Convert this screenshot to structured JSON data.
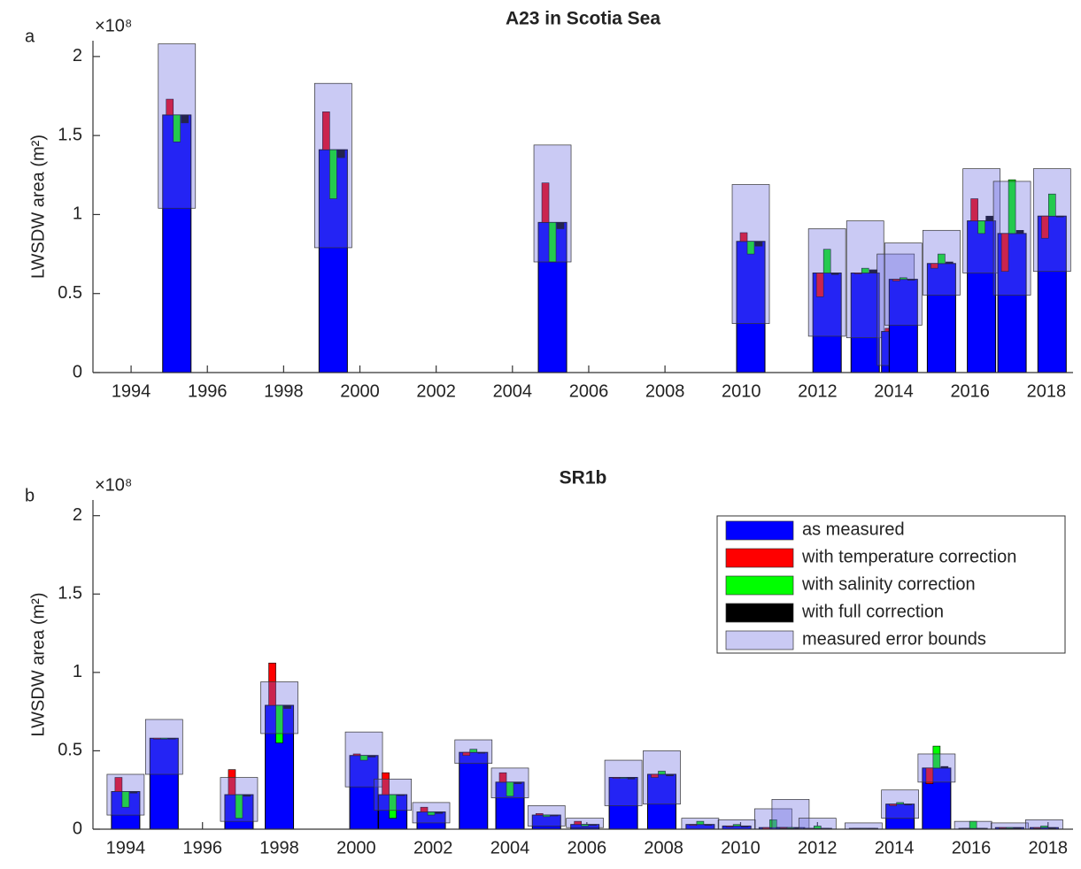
{
  "chart_data": [
    {
      "type": "corrections",
      "panel_label": "a",
      "title": "A23 in Scotia Sea",
      "ylabel": "LWSDW area (m²)",
      "exponent": "×10⁸",
      "x": [
        1995.2,
        1999.3,
        2005.05,
        2010.25,
        2012.25,
        2013.25,
        2014.05,
        2014.25,
        2015.25,
        2016.3,
        2017.1,
        2018.15
      ],
      "series": [
        {
          "name": "as measured",
          "color": "#0000ff",
          "values": [
            1.63,
            1.41,
            0.95,
            0.83,
            0.63,
            0.63,
            0.26,
            0.59,
            0.69,
            0.96,
            0.88,
            0.99
          ]
        },
        {
          "name": "with temperature correction",
          "color": "#ff0000",
          "values": [
            1.73,
            1.65,
            1.2,
            0.885,
            0.48,
            0.63,
            0.28,
            0.58,
            0.66,
            1.1,
            0.64,
            0.85
          ]
        },
        {
          "name": "with salinity correction",
          "color": "#00ff00",
          "values": [
            1.46,
            1.1,
            0.7,
            0.75,
            0.78,
            0.66,
            0.27,
            0.6,
            0.75,
            0.88,
            1.22,
            1.13
          ]
        },
        {
          "name": "with full correction",
          "color": "#000000",
          "values": [
            1.58,
            1.36,
            0.91,
            0.8,
            0.62,
            0.65,
            0.27,
            0.59,
            0.7,
            0.99,
            0.9,
            0.99
          ]
        },
        {
          "name": "measured error bounds",
          "color": "#6666e0",
          "lower": [
            1.04,
            0.79,
            0.7,
            0.31,
            0.23,
            0.22,
            0.045,
            0.3,
            0.49,
            0.63,
            0.49,
            0.64
          ],
          "upper": [
            2.08,
            1.83,
            1.44,
            1.19,
            0.91,
            0.96,
            0.75,
            0.82,
            0.9,
            1.29,
            1.21,
            1.29
          ]
        }
      ],
      "xlim": [
        1993.0,
        2018.7
      ],
      "ylim": [
        0,
        2.1
      ],
      "xticks": [
        1994,
        1996,
        1998,
        2000,
        2002,
        2004,
        2006,
        2008,
        2010,
        2012,
        2014,
        2016,
        2018
      ],
      "yticks": [
        0,
        0.5,
        1,
        1.5,
        2
      ],
      "legend": false
    },
    {
      "type": "corrections",
      "panel_label": "b",
      "title": "SR1b",
      "ylabel": "LWSDW area (m²)",
      "exponent": "×10⁸",
      "x": [
        1994.0,
        1995.0,
        1996.95,
        1998.0,
        2000.2,
        2000.95,
        2001.95,
        2003.05,
        2004.0,
        2004.95,
        2005.95,
        2006.95,
        2007.95,
        2008.95,
        2009.9,
        2010.85,
        2011.3,
        2012.0,
        2013.2,
        2014.15,
        2015.1,
        2016.05,
        2017.0,
        2017.9
      ],
      "series": [
        {
          "name": "as measured",
          "color": "#0000ff",
          "values": [
            0.24,
            0.58,
            0.22,
            0.79,
            0.47,
            0.22,
            0.11,
            0.49,
            0.3,
            0.09,
            0.03,
            0.33,
            0.35,
            0.03,
            0.02,
            0.01,
            0.01,
            0.005,
            0.005,
            0.16,
            0.39,
            0.005,
            0.01,
            0.01
          ]
        },
        {
          "name": "with temperature correction",
          "color": "#ff0000",
          "values": [
            0.33,
            0.58,
            0.38,
            1.06,
            0.48,
            0.36,
            0.14,
            0.47,
            0.36,
            0.1,
            0.05,
            0.33,
            0.33,
            0.03,
            0.02,
            0.0,
            0.01,
            0.0,
            0.005,
            0.15,
            0.29,
            0.0,
            0.01,
            0.01
          ]
        },
        {
          "name": "with salinity correction",
          "color": "#00ff00",
          "values": [
            0.14,
            0.58,
            0.07,
            0.55,
            0.44,
            0.07,
            0.09,
            0.51,
            0.21,
            0.08,
            0.02,
            0.33,
            0.37,
            0.05,
            0.03,
            0.06,
            0.01,
            0.02,
            0.005,
            0.17,
            0.53,
            0.05,
            0.01,
            0.02
          ]
        },
        {
          "name": "with full correction",
          "color": "#000000",
          "values": [
            0.23,
            0.575,
            0.21,
            0.77,
            0.46,
            0.22,
            0.1,
            0.49,
            0.29,
            0.09,
            0.03,
            0.32,
            0.34,
            0.03,
            0.02,
            0.01,
            0.01,
            0.005,
            0.005,
            0.16,
            0.4,
            0.005,
            0.01,
            0.01
          ]
        },
        {
          "name": "measured error bounds",
          "color": "#6666e0",
          "lower": [
            0.09,
            0.35,
            0.05,
            0.61,
            0.27,
            0.12,
            0.04,
            0.42,
            0.2,
            0.02,
            0.01,
            0.15,
            0.16,
            0.0,
            0.0,
            0.0,
            0.0,
            0.0,
            0.0,
            0.07,
            0.3,
            0.0,
            0.0,
            0.0
          ],
          "upper": [
            0.35,
            0.7,
            0.33,
            0.94,
            0.62,
            0.32,
            0.17,
            0.57,
            0.39,
            0.15,
            0.07,
            0.44,
            0.5,
            0.07,
            0.06,
            0.13,
            0.19,
            0.07,
            0.04,
            0.25,
            0.48,
            0.05,
            0.04,
            0.06
          ]
        }
      ],
      "xlim": [
        1993.15,
        2018.65
      ],
      "ylim": [
        0,
        2.1
      ],
      "xticks": [
        1994,
        1996,
        1998,
        2000,
        2002,
        2004,
        2006,
        2008,
        2010,
        2012,
        2014,
        2016,
        2018
      ],
      "yticks": [
        0,
        0.5,
        1,
        1.5,
        2
      ],
      "legend": "upper right"
    }
  ]
}
